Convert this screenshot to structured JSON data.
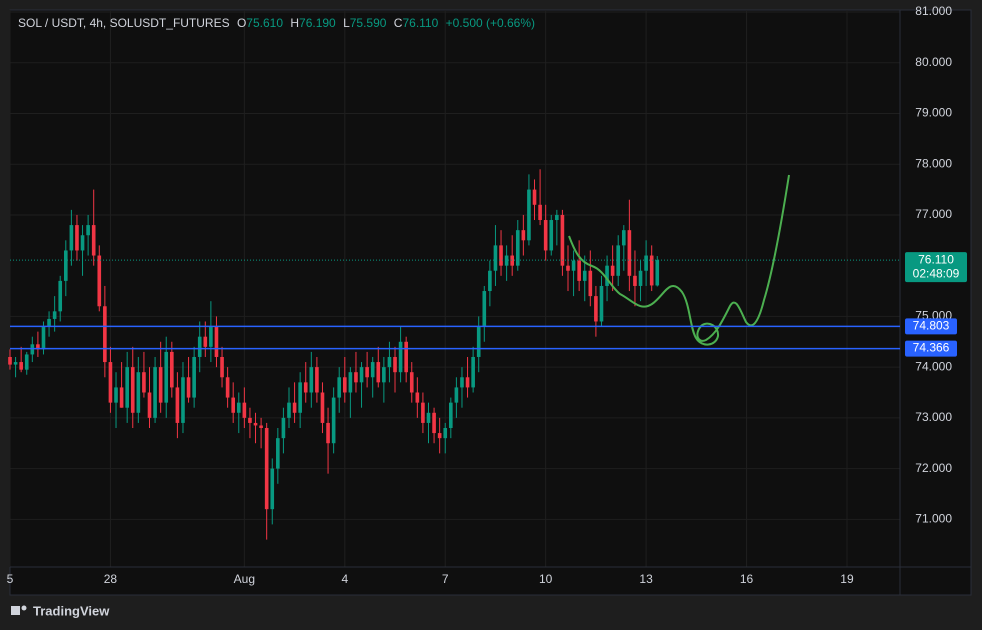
{
  "chart_data": {
    "type": "candlestick",
    "header": {
      "symbol": "SOL / USDT, 4h, SOLUSDT_FUTURES",
      "o_label": "O",
      "o": "75.610",
      "h_label": "H",
      "h": "76.190",
      "l_label": "L",
      "l": "75.590",
      "c_label": "C",
      "c": "76.110",
      "change": "+0.500 (+0.66%)"
    },
    "up_color": "#089981",
    "down_color": "#f23645",
    "xlim": [
      0,
      638
    ],
    "xticks": [
      {
        "value": 0,
        "label": "5"
      },
      {
        "value": 72,
        "label": "28"
      },
      {
        "value": 168,
        "label": "Aug"
      },
      {
        "value": 240,
        "label": "4"
      },
      {
        "value": 312,
        "label": "7"
      },
      {
        "value": 384,
        "label": "10"
      },
      {
        "value": 456,
        "label": "13"
      },
      {
        "value": 528,
        "label": "16"
      },
      {
        "value": 600,
        "label": "19"
      }
    ],
    "ylim": [
      70.06,
      81.04
    ],
    "yticks": [
      {
        "value": 71,
        "label": "71.000"
      },
      {
        "value": 72,
        "label": "72.000"
      },
      {
        "value": 73,
        "label": "73.000"
      },
      {
        "value": 74,
        "label": "74.000"
      },
      {
        "value": 75,
        "label": "75.000"
      },
      {
        "value": 77,
        "label": "77.000"
      },
      {
        "value": 78,
        "label": "78.000"
      },
      {
        "value": 79,
        "label": "79.000"
      },
      {
        "value": 80,
        "label": "80.000"
      },
      {
        "value": 81,
        "label": "81.000"
      }
    ],
    "grid": true,
    "levels": [
      {
        "value": 74.803,
        "color": "#2962ff"
      },
      {
        "value": 74.366,
        "color": "#2962ff"
      }
    ],
    "last_price": {
      "value": 76.11,
      "label": "76.110",
      "countdown": "02:48:09",
      "color": "#089981"
    },
    "candles": [
      [
        0,
        74.2,
        74.35,
        73.95,
        74.05
      ],
      [
        4,
        74.05,
        74.2,
        73.8,
        74.1
      ],
      [
        8,
        74.1,
        74.4,
        73.9,
        73.95
      ],
      [
        12,
        73.95,
        74.3,
        73.85,
        74.25
      ],
      [
        16,
        74.25,
        74.6,
        74.1,
        74.45
      ],
      [
        20,
        74.45,
        74.7,
        74.2,
        74.35
      ],
      [
        24,
        74.35,
        74.9,
        74.25,
        74.8
      ],
      [
        28,
        74.8,
        75.1,
        74.6,
        74.95
      ],
      [
        32,
        74.95,
        75.4,
        74.7,
        75.1
      ],
      [
        36,
        75.1,
        75.8,
        74.9,
        75.7
      ],
      [
        40,
        75.7,
        76.5,
        75.4,
        76.3
      ],
      [
        44,
        76.3,
        77.1,
        76.0,
        76.8
      ],
      [
        48,
        76.8,
        77.0,
        76.1,
        76.3
      ],
      [
        52,
        76.3,
        76.8,
        75.8,
        76.6
      ],
      [
        56,
        76.6,
        77.0,
        76.2,
        76.8
      ],
      [
        60,
        76.8,
        77.5,
        76.0,
        76.2
      ],
      [
        64,
        76.2,
        76.4,
        75.1,
        75.2
      ],
      [
        68,
        75.2,
        75.6,
        73.8,
        74.1
      ],
      [
        72,
        74.1,
        74.4,
        73.1,
        73.3
      ],
      [
        76,
        73.3,
        73.9,
        72.8,
        73.6
      ],
      [
        80,
        73.6,
        74.1,
        73.2,
        73.2
      ],
      [
        84,
        73.2,
        74.3,
        72.9,
        74.0
      ],
      [
        88,
        74.0,
        74.4,
        72.8,
        73.1
      ],
      [
        92,
        73.1,
        74.2,
        72.9,
        73.9
      ],
      [
        96,
        73.9,
        74.3,
        73.4,
        73.5
      ],
      [
        100,
        73.5,
        74.0,
        72.8,
        73.0
      ],
      [
        104,
        73.0,
        74.2,
        72.9,
        74.0
      ],
      [
        108,
        74.0,
        74.5,
        73.1,
        73.3
      ],
      [
        112,
        73.3,
        74.6,
        73.0,
        74.3
      ],
      [
        116,
        74.3,
        74.5,
        73.4,
        73.6
      ],
      [
        120,
        73.6,
        73.9,
        72.6,
        72.9
      ],
      [
        124,
        72.9,
        74.1,
        72.7,
        73.8
      ],
      [
        128,
        73.8,
        74.2,
        73.3,
        73.4
      ],
      [
        132,
        73.4,
        74.4,
        73.2,
        74.2
      ],
      [
        136,
        74.2,
        74.9,
        73.9,
        74.6
      ],
      [
        140,
        74.6,
        74.9,
        74.2,
        74.4
      ],
      [
        144,
        74.4,
        75.3,
        74.1,
        74.8
      ],
      [
        148,
        74.8,
        75.0,
        74.0,
        74.2
      ],
      [
        152,
        74.2,
        74.4,
        73.6,
        73.8
      ],
      [
        156,
        73.8,
        74.0,
        73.2,
        73.4
      ],
      [
        160,
        73.4,
        73.7,
        72.9,
        73.1
      ],
      [
        164,
        73.1,
        73.5,
        72.7,
        73.3
      ],
      [
        168,
        73.3,
        73.6,
        72.8,
        73.0
      ],
      [
        172,
        73.0,
        73.2,
        72.6,
        72.9
      ],
      [
        176,
        72.9,
        73.1,
        72.5,
        72.85
      ],
      [
        180,
        72.85,
        73.0,
        72.4,
        72.8
      ],
      [
        184,
        72.8,
        72.9,
        70.6,
        71.2
      ],
      [
        188,
        71.2,
        72.2,
        70.9,
        72.0
      ],
      [
        192,
        72.0,
        72.8,
        71.7,
        72.6
      ],
      [
        196,
        72.6,
        73.2,
        72.3,
        73.0
      ],
      [
        200,
        73.0,
        73.6,
        72.8,
        73.3
      ],
      [
        204,
        73.3,
        73.7,
        72.9,
        73.1
      ],
      [
        208,
        73.1,
        73.9,
        72.8,
        73.7
      ],
      [
        212,
        73.7,
        74.1,
        73.3,
        73.5
      ],
      [
        216,
        73.5,
        74.3,
        73.2,
        74.0
      ],
      [
        220,
        74.0,
        74.2,
        73.3,
        73.5
      ],
      [
        224,
        73.5,
        73.7,
        72.7,
        72.9
      ],
      [
        228,
        72.9,
        73.2,
        71.9,
        72.5
      ],
      [
        232,
        72.5,
        73.6,
        72.3,
        73.4
      ],
      [
        236,
        73.4,
        74.0,
        73.1,
        73.8
      ],
      [
        240,
        73.8,
        74.2,
        73.3,
        73.5
      ],
      [
        244,
        73.5,
        74.0,
        73.0,
        73.9
      ],
      [
        248,
        73.9,
        74.3,
        73.5,
        73.7
      ],
      [
        252,
        73.7,
        74.1,
        73.2,
        74.0
      ],
      [
        256,
        74.0,
        74.3,
        73.6,
        73.8
      ],
      [
        260,
        73.8,
        74.2,
        73.4,
        74.1
      ],
      [
        264,
        74.1,
        74.4,
        73.6,
        73.7
      ],
      [
        268,
        73.7,
        74.2,
        73.3,
        74.0
      ],
      [
        272,
        74.0,
        74.5,
        73.7,
        74.2
      ],
      [
        276,
        74.2,
        74.4,
        73.5,
        73.9
      ],
      [
        280,
        73.9,
        74.8,
        73.7,
        74.5
      ],
      [
        284,
        74.5,
        74.6,
        73.7,
        73.9
      ],
      [
        288,
        73.9,
        74.1,
        73.3,
        73.5
      ],
      [
        292,
        73.5,
        73.8,
        73.0,
        73.3
      ],
      [
        296,
        73.3,
        73.5,
        72.7,
        72.9
      ],
      [
        300,
        72.9,
        73.3,
        72.5,
        73.1
      ],
      [
        304,
        73.1,
        73.2,
        72.5,
        72.7
      ],
      [
        308,
        72.7,
        73.0,
        72.3,
        72.6
      ],
      [
        312,
        72.6,
        72.9,
        72.3,
        72.8
      ],
      [
        316,
        72.8,
        73.4,
        72.6,
        73.3
      ],
      [
        320,
        73.3,
        73.8,
        73.0,
        73.6
      ],
      [
        324,
        73.6,
        74.0,
        73.2,
        73.8
      ],
      [
        328,
        73.8,
        74.2,
        73.4,
        73.6
      ],
      [
        332,
        73.6,
        74.4,
        73.5,
        74.2
      ],
      [
        336,
        74.2,
        75.0,
        73.9,
        74.8
      ],
      [
        340,
        74.8,
        75.6,
        74.5,
        75.5
      ],
      [
        344,
        75.5,
        76.1,
        75.2,
        75.9
      ],
      [
        348,
        75.9,
        76.8,
        75.6,
        76.4
      ],
      [
        352,
        76.4,
        76.7,
        75.8,
        76.0
      ],
      [
        356,
        76.0,
        76.4,
        75.7,
        76.2
      ],
      [
        360,
        76.2,
        76.6,
        75.8,
        76.0
      ],
      [
        364,
        76.0,
        76.9,
        75.9,
        76.7
      ],
      [
        368,
        76.7,
        77.0,
        76.2,
        76.5
      ],
      [
        372,
        76.5,
        77.8,
        76.4,
        77.5
      ],
      [
        376,
        77.5,
        77.7,
        76.9,
        77.2
      ],
      [
        380,
        77.2,
        77.9,
        76.8,
        76.9
      ],
      [
        384,
        76.9,
        77.2,
        76.1,
        76.3
      ],
      [
        388,
        76.3,
        77.0,
        76.2,
        76.9
      ],
      [
        392,
        76.9,
        77.1,
        76.4,
        77.0
      ],
      [
        396,
        77.0,
        77.1,
        75.8,
        76.0
      ],
      [
        400,
        76.0,
        76.4,
        75.5,
        75.9
      ],
      [
        404,
        75.9,
        76.3,
        75.4,
        76.1
      ],
      [
        408,
        76.1,
        76.5,
        75.5,
        75.7
      ],
      [
        412,
        75.7,
        76.2,
        75.3,
        75.9
      ],
      [
        416,
        75.9,
        76.3,
        75.2,
        75.4
      ],
      [
        420,
        75.4,
        75.6,
        74.6,
        74.9
      ],
      [
        424,
        74.9,
        75.8,
        74.8,
        75.6
      ],
      [
        428,
        75.6,
        76.2,
        75.3,
        76.0
      ],
      [
        432,
        76.0,
        76.4,
        75.5,
        75.8
      ],
      [
        436,
        75.8,
        76.6,
        75.6,
        76.4
      ],
      [
        440,
        76.4,
        76.8,
        75.9,
        76.7
      ],
      [
        444,
        76.7,
        77.3,
        75.5,
        75.8
      ],
      [
        448,
        75.8,
        76.3,
        75.2,
        75.6
      ],
      [
        452,
        75.6,
        76.1,
        75.3,
        75.9
      ],
      [
        456,
        75.9,
        76.5,
        75.6,
        76.2
      ],
      [
        460,
        76.2,
        76.4,
        75.5,
        75.61
      ],
      [
        464,
        75.61,
        76.19,
        75.59,
        76.11
      ]
    ],
    "branding": "TradingView"
  }
}
